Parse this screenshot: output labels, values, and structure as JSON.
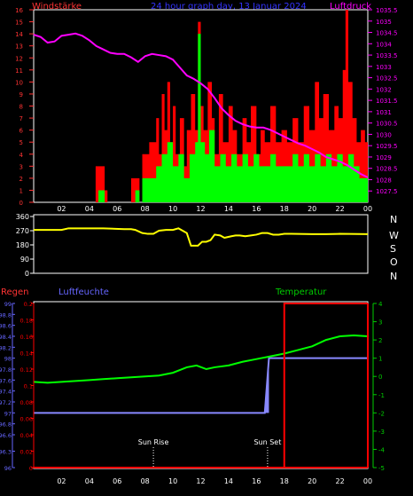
{
  "header": {
    "left_label": "Windstärke",
    "title": "24 hour graph day, 13 Januar 2024",
    "right_label": "Luftdruck"
  },
  "direction_letters": [
    "N",
    "W",
    "S",
    "O",
    "N"
  ],
  "bottom_header": {
    "regen": "Regen",
    "luftfeuchte": "Luftfeuchte",
    "temperatur": "Temperatur"
  },
  "sun": {
    "rise_label": "Sun Rise",
    "set_label": "Sun Set",
    "rise_hour": 8.6,
    "set_hour": 16.8
  },
  "colors": {
    "wind_gust": "#ff0000",
    "wind_avg": "#00ff00",
    "pressure": "#ff00ff",
    "direction": "#ffff00",
    "humidity": "#8888ff",
    "temperature": "#00ff00",
    "rain": "#ff0000",
    "left_axis": "#ff3333",
    "blue_axis": "#6666ff",
    "green_axis": "#00cc00",
    "frame": "#ffffff",
    "title": "#3333ff"
  },
  "chart_data": [
    {
      "type": "area",
      "name": "wind_pressure",
      "x_ticks": [
        "02",
        "04",
        "06",
        "08",
        "10",
        "12",
        "14",
        "16",
        "18",
        "20",
        "22",
        "00"
      ],
      "x_range": [
        0,
        24
      ],
      "wind_ylim": [
        0,
        16
      ],
      "wind_ticks": [
        "0",
        "1",
        "2",
        "3",
        "4",
        "5",
        "6",
        "7",
        "8",
        "9",
        "10",
        "11",
        "12",
        "13",
        "14",
        "15",
        "16"
      ],
      "pressure_ylim": [
        1027.0,
        1035.5
      ],
      "pressure_ticks": [
        "1027.5",
        "1028",
        "1028.5",
        "1029",
        "1029.5",
        "1030",
        "1030.5",
        "1031",
        "1031.5",
        "1032",
        "1032.5",
        "1033",
        "1033.5",
        "1034",
        "1034.5",
        "1035",
        "1035.5"
      ],
      "gust_points": [
        [
          0,
          0
        ],
        [
          4.4,
          0
        ],
        [
          4.45,
          3
        ],
        [
          5.0,
          3
        ],
        [
          5.1,
          1
        ],
        [
          5.3,
          0
        ],
        [
          6.8,
          0
        ],
        [
          7.0,
          2
        ],
        [
          7.4,
          2
        ],
        [
          7.6,
          0
        ],
        [
          7.8,
          4
        ],
        [
          8.3,
          5
        ],
        [
          8.8,
          7
        ],
        [
          9.0,
          4
        ],
        [
          9.2,
          9
        ],
        [
          9.4,
          6
        ],
        [
          9.6,
          10
        ],
        [
          9.8,
          5
        ],
        [
          10.0,
          8
        ],
        [
          10.2,
          4
        ],
        [
          10.5,
          7
        ],
        [
          10.8,
          3
        ],
        [
          11.0,
          6
        ],
        [
          11.3,
          9
        ],
        [
          11.6,
          6
        ],
        [
          11.8,
          15
        ],
        [
          12.0,
          8
        ],
        [
          12.2,
          6
        ],
        [
          12.5,
          10
        ],
        [
          12.8,
          7
        ],
        [
          13.0,
          4
        ],
        [
          13.3,
          9
        ],
        [
          13.6,
          5
        ],
        [
          14.0,
          8
        ],
        [
          14.3,
          6
        ],
        [
          14.6,
          4
        ],
        [
          15.0,
          7
        ],
        [
          15.3,
          5
        ],
        [
          15.6,
          8
        ],
        [
          16.0,
          4
        ],
        [
          16.3,
          6
        ],
        [
          16.6,
          5
        ],
        [
          17.0,
          8
        ],
        [
          17.4,
          5
        ],
        [
          17.8,
          6
        ],
        [
          18.2,
          5
        ],
        [
          18.6,
          7
        ],
        [
          19.0,
          5
        ],
        [
          19.4,
          8
        ],
        [
          19.8,
          6
        ],
        [
          20.2,
          10
        ],
        [
          20.5,
          7
        ],
        [
          20.8,
          9
        ],
        [
          21.2,
          6
        ],
        [
          21.6,
          8
        ],
        [
          21.9,
          7
        ],
        [
          22.2,
          11
        ],
        [
          22.4,
          16
        ],
        [
          22.6,
          10
        ],
        [
          22.9,
          7
        ],
        [
          23.2,
          5
        ],
        [
          23.5,
          6
        ],
        [
          23.8,
          5
        ],
        [
          24.0,
          5
        ]
      ],
      "avg_points": [
        [
          0,
          0
        ],
        [
          4.6,
          0
        ],
        [
          4.65,
          1
        ],
        [
          5.0,
          1
        ],
        [
          5.1,
          0
        ],
        [
          7.0,
          0
        ],
        [
          7.3,
          1
        ],
        [
          7.6,
          0
        ],
        [
          7.8,
          2
        ],
        [
          8.3,
          2
        ],
        [
          8.8,
          3
        ],
        [
          9.2,
          4
        ],
        [
          9.6,
          5
        ],
        [
          10.0,
          3
        ],
        [
          10.4,
          4
        ],
        [
          10.8,
          2
        ],
        [
          11.2,
          4
        ],
        [
          11.6,
          5
        ],
        [
          11.8,
          14
        ],
        [
          12.0,
          5
        ],
        [
          12.3,
          4
        ],
        [
          12.6,
          6
        ],
        [
          13.0,
          3
        ],
        [
          13.4,
          4
        ],
        [
          13.8,
          3
        ],
        [
          14.2,
          4
        ],
        [
          14.6,
          3
        ],
        [
          15.0,
          4
        ],
        [
          15.4,
          3
        ],
        [
          15.8,
          4
        ],
        [
          16.2,
          3
        ],
        [
          16.6,
          3
        ],
        [
          17.0,
          4
        ],
        [
          17.4,
          3
        ],
        [
          17.8,
          3
        ],
        [
          18.2,
          3
        ],
        [
          18.6,
          4
        ],
        [
          19.0,
          3
        ],
        [
          19.4,
          4
        ],
        [
          19.8,
          3
        ],
        [
          20.2,
          4
        ],
        [
          20.6,
          3
        ],
        [
          21.0,
          4
        ],
        [
          21.4,
          3
        ],
        [
          21.8,
          4
        ],
        [
          22.2,
          3
        ],
        [
          22.6,
          4
        ],
        [
          23.0,
          3
        ],
        [
          23.4,
          2
        ],
        [
          23.8,
          2
        ],
        [
          24.0,
          2
        ]
      ],
      "pressure_points": [
        [
          0,
          1034.4
        ],
        [
          0.5,
          1034.3
        ],
        [
          1.0,
          1034.05
        ],
        [
          1.5,
          1034.1
        ],
        [
          2.0,
          1034.35
        ],
        [
          2.5,
          1034.4
        ],
        [
          3.0,
          1034.45
        ],
        [
          3.5,
          1034.35
        ],
        [
          4.0,
          1034.15
        ],
        [
          4.5,
          1033.9
        ],
        [
          5.0,
          1033.75
        ],
        [
          5.5,
          1033.6
        ],
        [
          6.0,
          1033.55
        ],
        [
          6.5,
          1033.55
        ],
        [
          7.0,
          1033.4
        ],
        [
          7.5,
          1033.2
        ],
        [
          8.0,
          1033.45
        ],
        [
          8.5,
          1033.55
        ],
        [
          9.0,
          1033.5
        ],
        [
          9.5,
          1033.45
        ],
        [
          10.0,
          1033.3
        ],
        [
          10.5,
          1032.95
        ],
        [
          11.0,
          1032.6
        ],
        [
          11.5,
          1032.45
        ],
        [
          12.0,
          1032.25
        ],
        [
          12.5,
          1032.0
        ],
        [
          13.0,
          1031.6
        ],
        [
          13.5,
          1031.15
        ],
        [
          14.0,
          1030.85
        ],
        [
          14.5,
          1030.6
        ],
        [
          15.0,
          1030.45
        ],
        [
          15.5,
          1030.35
        ],
        [
          16.0,
          1030.3
        ],
        [
          16.5,
          1030.3
        ],
        [
          17.0,
          1030.2
        ],
        [
          17.5,
          1030.05
        ],
        [
          18.0,
          1029.9
        ],
        [
          18.5,
          1029.75
        ],
        [
          19.0,
          1029.6
        ],
        [
          19.5,
          1029.5
        ],
        [
          20.0,
          1029.35
        ],
        [
          20.5,
          1029.2
        ],
        [
          21.0,
          1029.0
        ],
        [
          21.5,
          1028.9
        ],
        [
          22.0,
          1028.8
        ],
        [
          22.5,
          1028.65
        ],
        [
          23.0,
          1028.45
        ],
        [
          23.5,
          1028.25
        ],
        [
          24.0,
          1028.1
        ]
      ]
    },
    {
      "type": "line",
      "name": "wind_direction",
      "x_range": [
        0,
        24
      ],
      "ylim": [
        0,
        360
      ],
      "y_ticks": [
        "360",
        "270",
        "180",
        "90",
        "0"
      ],
      "points": [
        [
          0,
          275
        ],
        [
          2.0,
          275
        ],
        [
          2.5,
          285
        ],
        [
          5.0,
          285
        ],
        [
          6.5,
          280
        ],
        [
          7.0,
          280
        ],
        [
          7.3,
          275
        ],
        [
          7.8,
          255
        ],
        [
          8.2,
          250
        ],
        [
          8.6,
          250
        ],
        [
          9.0,
          270
        ],
        [
          9.5,
          275
        ],
        [
          10.0,
          275
        ],
        [
          10.4,
          285
        ],
        [
          10.7,
          270
        ],
        [
          11.0,
          255
        ],
        [
          11.3,
          175
        ],
        [
          11.8,
          175
        ],
        [
          12.1,
          200
        ],
        [
          12.4,
          200
        ],
        [
          12.7,
          210
        ],
        [
          13.0,
          245
        ],
        [
          13.4,
          240
        ],
        [
          13.7,
          225
        ],
        [
          14.2,
          235
        ],
        [
          14.5,
          240
        ],
        [
          14.8,
          240
        ],
        [
          15.2,
          235
        ],
        [
          15.6,
          240
        ],
        [
          16.0,
          245
        ],
        [
          16.4,
          255
        ],
        [
          16.8,
          255
        ],
        [
          17.2,
          245
        ],
        [
          17.6,
          245
        ],
        [
          18.0,
          250
        ],
        [
          18.5,
          250
        ],
        [
          20.0,
          248
        ],
        [
          21.0,
          248
        ],
        [
          22.0,
          250
        ],
        [
          24.0,
          248
        ]
      ]
    },
    {
      "type": "line",
      "name": "rain_humidity_temperature",
      "x_ticks": [
        "02",
        "04",
        "06",
        "08",
        "10",
        "12",
        "14",
        "16",
        "18",
        "20",
        "22",
        "00"
      ],
      "x_range": [
        0,
        24
      ],
      "rain_ylim": [
        0,
        0.2
      ],
      "rain_ticks": [
        "0",
        "0.02",
        "0.04",
        "0.06",
        "0.08",
        "0.1",
        "0.12",
        "0.14",
        "0.16",
        "0.18",
        "0.2"
      ],
      "humidity_ylim": [
        96,
        99
      ],
      "humidity_ticks": [
        "96",
        "96.3",
        "96.6",
        "96.8",
        "97",
        "97.2",
        "97.4",
        "97.6",
        "97.8",
        "98",
        "98.2",
        "98.4",
        "98.6",
        "98.8",
        "99"
      ],
      "temp_ylim": [
        -5,
        4
      ],
      "temp_ticks": [
        "4",
        "3",
        "2",
        "1",
        "0",
        "-1",
        "-2",
        "-3",
        "-4",
        "-5"
      ],
      "rain_points": [
        [
          0,
          0
        ],
        [
          18.0,
          0
        ],
        [
          18.0,
          0.2
        ],
        [
          24,
          0.2
        ]
      ],
      "humidity_points": [
        [
          0,
          97
        ],
        [
          16.6,
          97
        ],
        [
          16.9,
          98
        ],
        [
          24,
          98
        ]
      ],
      "temperature_points": [
        [
          0,
          -0.3
        ],
        [
          1,
          -0.35
        ],
        [
          2,
          -0.3
        ],
        [
          3,
          -0.25
        ],
        [
          4,
          -0.2
        ],
        [
          5,
          -0.15
        ],
        [
          6,
          -0.1
        ],
        [
          7,
          -0.05
        ],
        [
          8,
          0.0
        ],
        [
          9,
          0.05
        ],
        [
          10,
          0.2
        ],
        [
          11,
          0.5
        ],
        [
          11.7,
          0.6
        ],
        [
          12.4,
          0.4
        ],
        [
          13,
          0.5
        ],
        [
          14,
          0.6
        ],
        [
          15,
          0.8
        ],
        [
          16,
          0.95
        ],
        [
          17,
          1.1
        ],
        [
          18,
          1.25
        ],
        [
          19,
          1.45
        ],
        [
          20,
          1.65
        ],
        [
          21,
          2.0
        ],
        [
          22,
          2.2
        ],
        [
          23,
          2.25
        ],
        [
          24,
          2.2
        ]
      ]
    }
  ]
}
